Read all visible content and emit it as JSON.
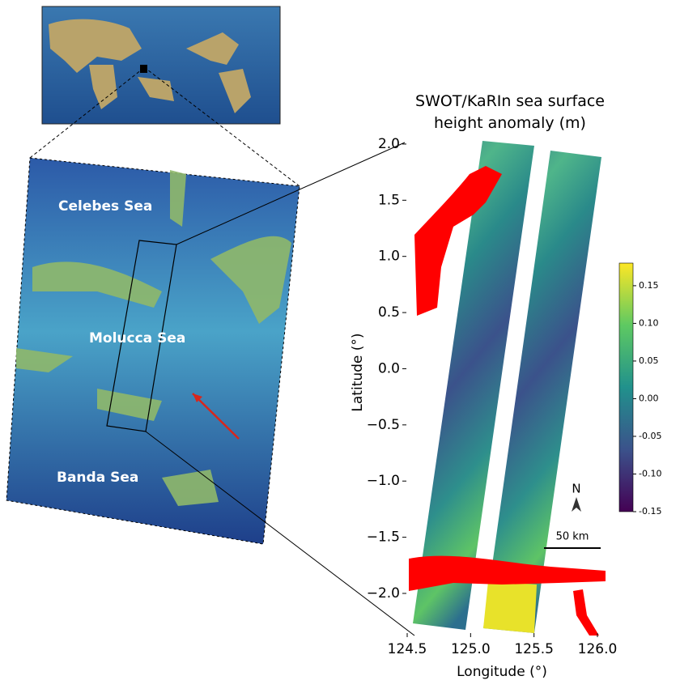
{
  "chart_data": {
    "type": "map",
    "title": "SWOT/KaRIn sea surface height anomaly (m)",
    "x_label": "Longitude (°)",
    "y_label": "Latitude (°)",
    "xlim": [
      124.35,
      126.15
    ],
    "xticks": [
      124.5,
      {
        "value": 125.0,
        "label": "125.0"
      },
      125.5,
      {
        "value": 126.0,
        "label": "126.0"
      }
    ],
    "ylim": [
      -2.3,
      2.05
    ],
    "yticks": [
      {
        "value": 2.0,
        "label": "2.0"
      },
      1.5,
      {
        "value": 1.0,
        "label": "1.0"
      },
      0.5,
      {
        "value": 0.0,
        "label": "0.0"
      },
      {
        "value": -0.5,
        "label": "−0.5"
      },
      {
        "value": -1.0,
        "label": "−1.0"
      },
      {
        "value": -1.5,
        "label": "−1.5"
      },
      {
        "value": -2.0,
        "label": "−2.0"
      }
    ],
    "colorbar": {
      "lim": [
        -0.15,
        0.18
      ],
      "ticks": [
        0.15,
        {
          "value": 0.1,
          "label": "0.10"
        },
        0.05,
        {
          "value": 0,
          "label": "0.00"
        },
        {
          "value": -0.05,
          "label": "-0.05"
        },
        {
          "value": -0.1,
          "label": "-0.10"
        },
        {
          "value": -0.15,
          "label": "-0.15"
        }
      ]
    },
    "north_label": "N",
    "scale_label": "50 km"
  },
  "map_labels": [
    "Celebes Sea",
    "Molucca Sea",
    "Banda Sea"
  ]
}
